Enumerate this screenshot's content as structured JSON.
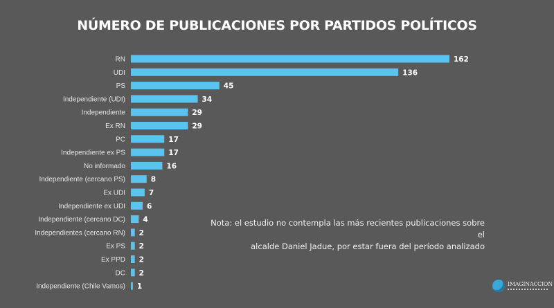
{
  "chart_data": {
    "type": "bar",
    "orientation": "horizontal",
    "title": "NÚMERO DE PUBLICACIONES POR PARTIDOS POLÍTICOS",
    "xlabel": "",
    "ylabel": "",
    "categories": [
      "RN",
      "UDI",
      "PS",
      "Independiente (UDI)",
      "Independiente",
      "Ex RN",
      "PC",
      "Independiente ex PS",
      "No informado",
      "Independiente (cercano PS)",
      "Ex UDI",
      "Independiente ex UDI",
      "Independiente (cercano DC)",
      "Independientes (cercano RN)",
      "Ex PS",
      "Ex PPD",
      "DC",
      "Independiente (Chile Vamos)"
    ],
    "values": [
      162,
      136,
      45,
      34,
      29,
      29,
      17,
      17,
      16,
      8,
      7,
      6,
      4,
      2,
      2,
      2,
      2,
      1
    ],
    "xlim": [
      0,
      162
    ],
    "grid": false,
    "legend": "none",
    "bar_color": "#5bc4ee"
  },
  "note": {
    "line1": "Nota: el estudio no contempla las más recientes publicaciones  sobre el",
    "line2": "alcalde Daniel Jadue, por estar fuera del período analizado"
  },
  "logo": {
    "name": "IMAGINACCION",
    "icon": "globe-logo-icon"
  }
}
